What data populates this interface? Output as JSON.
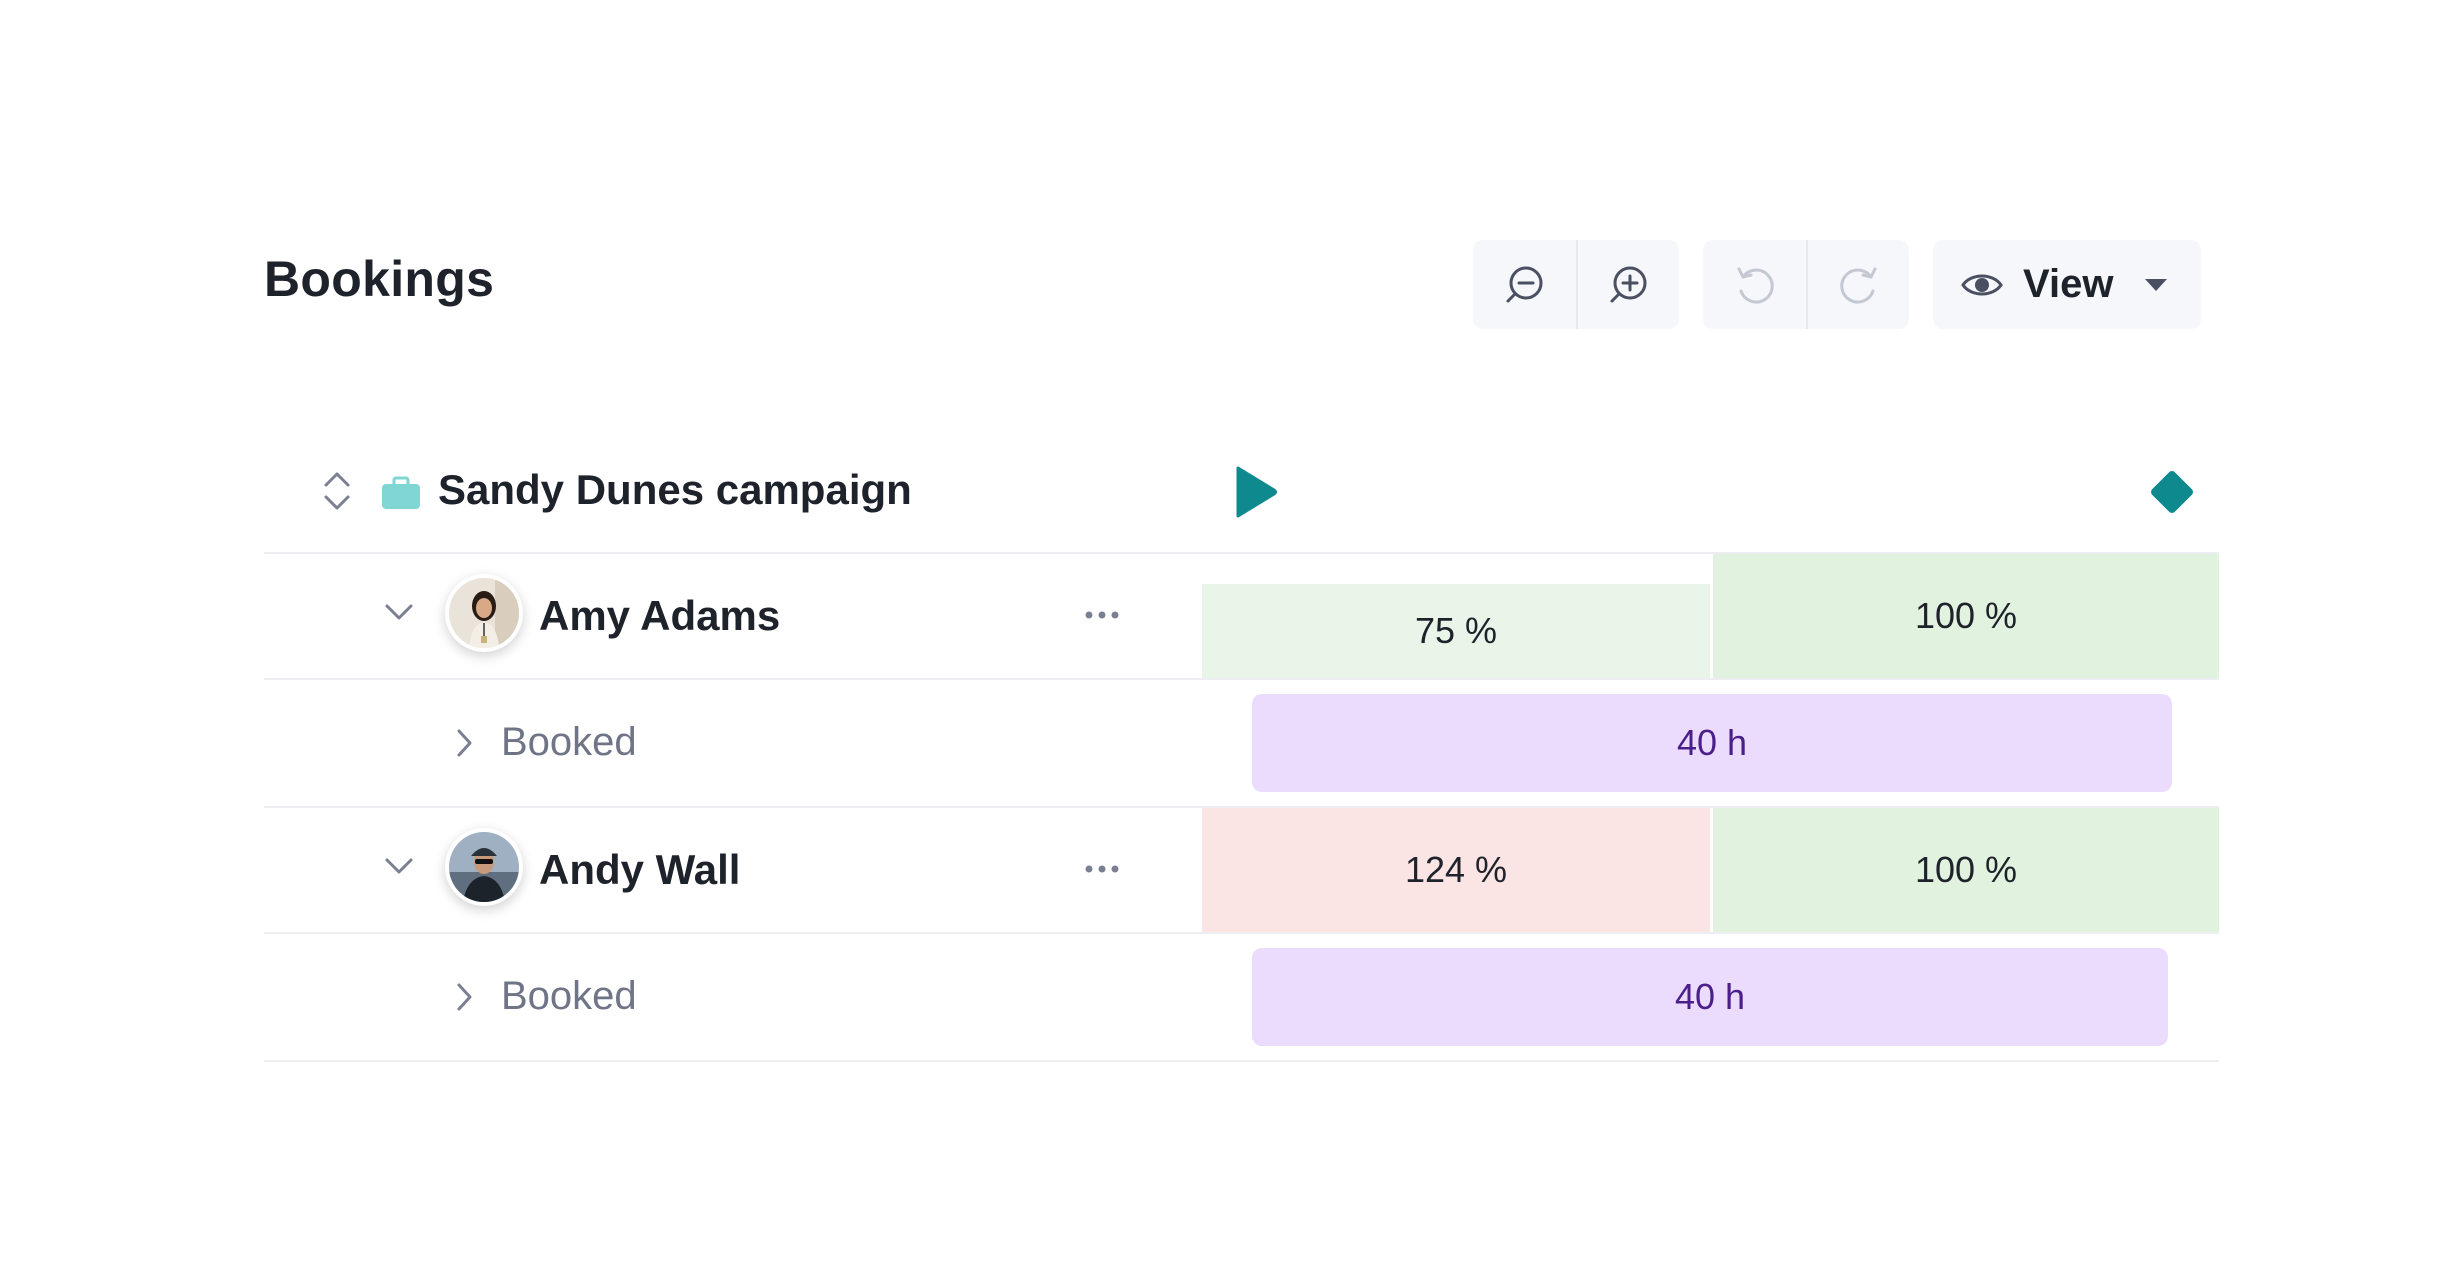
{
  "header": {
    "title": "Bookings",
    "view_label": "View"
  },
  "toolbar_icons": [
    "zoom-out-icon",
    "zoom-in-icon",
    "undo-icon",
    "redo-icon",
    "eye-icon",
    "caret-down-icon"
  ],
  "project": {
    "name": "Sandy Dunes campaign",
    "icon": "briefcase-icon",
    "icon_color": "#7fd6d2",
    "marker_color": "#0e8a8f"
  },
  "people": [
    {
      "name": "Amy Adams",
      "cells": [
        {
          "label": "75 %",
          "status": "under",
          "color": "#eaf5ea"
        },
        {
          "label": "100 %",
          "status": "full",
          "color": "#e1f2df"
        }
      ],
      "booked": {
        "label": "Booked",
        "hours": "40 h"
      }
    },
    {
      "name": "Andy Wall",
      "cells": [
        {
          "label": "124 %",
          "status": "over",
          "color": "#fbe4e4"
        },
        {
          "label": "100 %",
          "status": "full",
          "color": "#e1f2df"
        }
      ],
      "booked": {
        "label": "Booked",
        "hours": "40 h"
      }
    }
  ],
  "colors": {
    "booked_bar": "#ebdcfe",
    "booked_text": "#4b1f8a",
    "accent": "#0e8a8f"
  }
}
